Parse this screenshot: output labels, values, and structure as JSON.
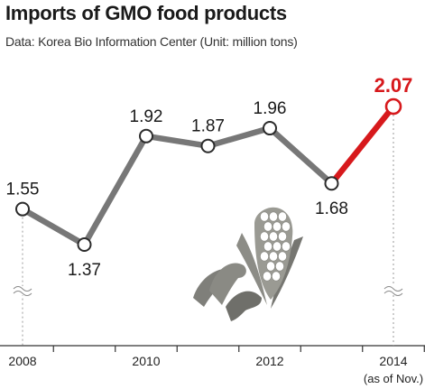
{
  "title": "Imports of GMO food products",
  "source": "Data: Korea Bio Information Center (Unit: million tons)",
  "colors": {
    "line": "#777777",
    "highlight": "#d7191c",
    "text": "#1a1a1a",
    "axis": "#333333"
  },
  "chart_data": {
    "type": "line",
    "title": "Imports of GMO food products",
    "ylabel": "million tons",
    "x": [
      "2008",
      "2009",
      "2010",
      "2011",
      "2012",
      "2013",
      "2014"
    ],
    "tick_labels": [
      "2008",
      "",
      "2010",
      "",
      "2012",
      "",
      "2014"
    ],
    "x_note": "(as of Nov.)",
    "values": [
      1.55,
      1.37,
      1.92,
      1.87,
      1.96,
      1.68,
      2.07
    ],
    "value_labels": [
      "1.55",
      "1.37",
      "1.92",
      "1.87",
      "1.96",
      "1.68",
      "2.07"
    ],
    "highlight_last_segment": true,
    "y_axis_break": true,
    "grid": false,
    "legend": "none"
  }
}
